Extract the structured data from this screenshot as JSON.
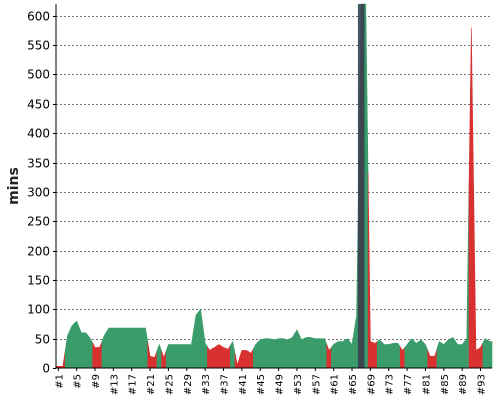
{
  "chart_data": {
    "type": "area",
    "ylabel": "mins",
    "ylim": [
      0,
      620
    ],
    "yticks": [
      0,
      50,
      100,
      150,
      200,
      250,
      300,
      350,
      400,
      450,
      500,
      550,
      600
    ],
    "grid": true,
    "x_tick_labels": [
      "#1",
      "#5",
      "#9",
      "#13",
      "#17",
      "#21",
      "#25",
      "#29",
      "#33",
      "#37",
      "#41",
      "#45",
      "#49",
      "#53",
      "#57",
      "#61",
      "#65",
      "#69",
      "#73",
      "#77",
      "#81",
      "#85",
      "#89",
      "#93"
    ],
    "series": [
      {
        "x": [
          "#1",
          "#2",
          "#3",
          "#4",
          "#5",
          "#6",
          "#7",
          "#8",
          "#9",
          "#10",
          "#11",
          "#12",
          "#13",
          "#14",
          "#15",
          "#16",
          "#17",
          "#18",
          "#19",
          "#20",
          "#21",
          "#22",
          "#23",
          "#24",
          "#25",
          "#26",
          "#27",
          "#28",
          "#29",
          "#30",
          "#31",
          "#32",
          "#33",
          "#34",
          "#35",
          "#36",
          "#37",
          "#38",
          "#39",
          "#40",
          "#41",
          "#42",
          "#43",
          "#44",
          "#45",
          "#46",
          "#47",
          "#48",
          "#49",
          "#50",
          "#51",
          "#52",
          "#53",
          "#54",
          "#55",
          "#56",
          "#57",
          "#58",
          "#59",
          "#60",
          "#61",
          "#62",
          "#63",
          "#64",
          "#65",
          "#66",
          "#67",
          "#68",
          "#69",
          "#70",
          "#71",
          "#72",
          "#73",
          "#74",
          "#75",
          "#76",
          "#77",
          "#78",
          "#79",
          "#80",
          "#81",
          "#82",
          "#83",
          "#84",
          "#85",
          "#86",
          "#87",
          "#88",
          "#89",
          "#90",
          "#91",
          "#92",
          "#93",
          "#94",
          "#95"
        ],
        "values": [
          3,
          3,
          55,
          72,
          80,
          60,
          60,
          50,
          35,
          35,
          55,
          68,
          68,
          68,
          68,
          68,
          68,
          68,
          68,
          68,
          20,
          18,
          40,
          18,
          40,
          40,
          40,
          40,
          40,
          40,
          90,
          100,
          42,
          30,
          35,
          40,
          35,
          32,
          45,
          5,
          30,
          30,
          25,
          40,
          48,
          50,
          50,
          48,
          50,
          50,
          48,
          52,
          65,
          48,
          52,
          52,
          50,
          50,
          50,
          30,
          40,
          45,
          45,
          50,
          40,
          90,
          620,
          620,
          45,
          42,
          48,
          40,
          40,
          42,
          42,
          30,
          40,
          50,
          42,
          48,
          40,
          20,
          20,
          45,
          40,
          48,
          52,
          40,
          40,
          50,
          580,
          30,
          35,
          50,
          45
        ],
        "colors": [
          "r",
          "r",
          "g",
          "g",
          "g",
          "g",
          "g",
          "g",
          "r",
          "r",
          "g",
          "g",
          "g",
          "g",
          "g",
          "g",
          "g",
          "g",
          "g",
          "g",
          "r",
          "r",
          "g",
          "r",
          "g",
          "g",
          "g",
          "g",
          "g",
          "g",
          "g",
          "g",
          "g",
          "r",
          "r",
          "r",
          "r",
          "r",
          "g",
          "r",
          "r",
          "r",
          "r",
          "g",
          "g",
          "g",
          "g",
          "g",
          "g",
          "g",
          "g",
          "g",
          "g",
          "g",
          "g",
          "g",
          "g",
          "g",
          "g",
          "r",
          "g",
          "g",
          "g",
          "g",
          "g",
          "g",
          "r",
          "g",
          "r",
          "r",
          "g",
          "g",
          "g",
          "g",
          "g",
          "r",
          "g",
          "g",
          "g",
          "g",
          "g",
          "r",
          "r",
          "g",
          "g",
          "g",
          "g",
          "g",
          "g",
          "g",
          "r",
          "r",
          "r",
          "g",
          "g"
        ]
      }
    ],
    "colors": {
      "above": "#3a9c6a",
      "below": "#d93030",
      "marker": "#2e4752"
    }
  }
}
